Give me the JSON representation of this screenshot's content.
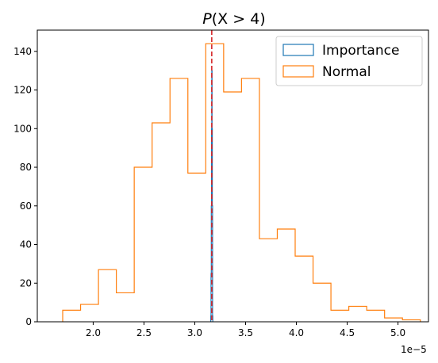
{
  "chart_data": {
    "type": "histogram",
    "title_main": "P",
    "title_rest": "(X > 4)",
    "axis_multiplier": "1e−5",
    "xlim": [
      1.45,
      5.3
    ],
    "ylim": [
      0,
      151
    ],
    "x_ticks": [
      2.0,
      2.5,
      3.0,
      3.5,
      4.0,
      4.5,
      5.0
    ],
    "x_tick_labels": [
      "2.0",
      "2.5",
      "3.0",
      "3.5",
      "4.0",
      "4.5",
      "5.0"
    ],
    "y_ticks": [
      0,
      20,
      40,
      60,
      80,
      100,
      120,
      140
    ],
    "y_tick_labels": [
      "0",
      "20",
      "40",
      "60",
      "80",
      "100",
      "120",
      "140"
    ],
    "legend_position": "top-right",
    "reference_line": {
      "x": 3.167,
      "color": "#d62728",
      "style": "dashed"
    },
    "series": [
      {
        "name": "Importance",
        "color": "#1f77b4",
        "bin_edges": [
          3.1575,
          3.16,
          3.1625,
          3.165,
          3.1675,
          3.17,
          3.1725,
          3.175,
          3.1775
        ],
        "counts": [
          3,
          25,
          60,
          100,
          130,
          100,
          60,
          3
        ]
      },
      {
        "name": "Normal",
        "color": "#ff7f0e",
        "bin_edges": [
          1.7,
          1.876,
          2.052,
          2.228,
          2.404,
          2.58,
          2.756,
          2.932,
          3.108,
          3.284,
          3.46,
          3.636,
          3.812,
          3.988,
          4.164,
          4.34,
          4.516,
          4.692,
          4.868,
          5.044,
          5.22
        ],
        "counts": [
          6,
          9,
          27,
          15,
          80,
          103,
          126,
          77,
          144,
          119,
          126,
          43,
          48,
          34,
          20,
          6,
          8,
          6,
          2,
          1
        ]
      }
    ]
  }
}
